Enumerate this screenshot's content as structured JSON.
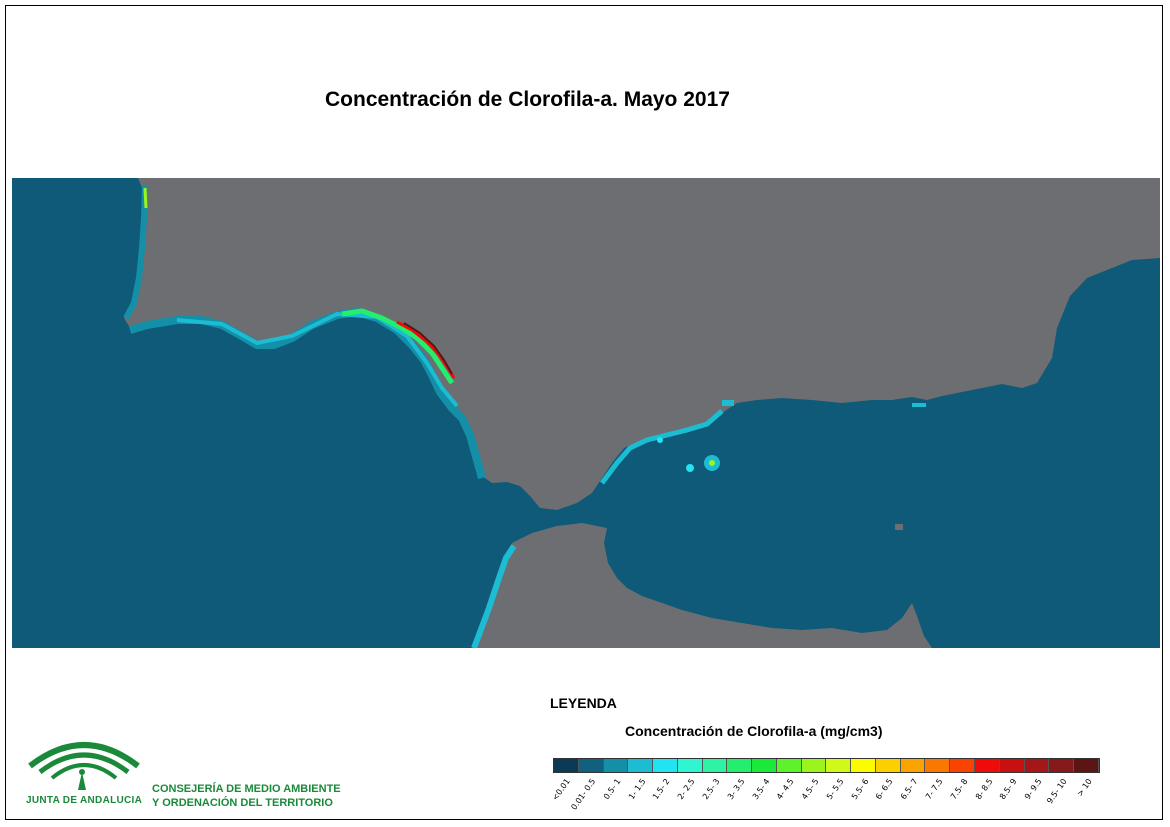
{
  "title": "Concentración de Clorofila-a. Mayo 2017",
  "legend": {
    "heading": "LEYENDA",
    "subtitle": "Concentración de Clorofila-a (mg/cm3)",
    "classes": [
      {
        "label": "<0.01",
        "color": "#0b3a56"
      },
      {
        "label": "0.01- 0.5",
        "color": "#10617e"
      },
      {
        "label": "0.5- 1",
        "color": "#1390a8"
      },
      {
        "label": "1- 1.5",
        "color": "#1cbdd2"
      },
      {
        "label": "1.5- 2",
        "color": "#22e3f2"
      },
      {
        "label": "2- 2.5",
        "color": "#2ff5d0"
      },
      {
        "label": "2.5- 3",
        "color": "#2ef3a5"
      },
      {
        "label": "3- 3.5",
        "color": "#23ee6e"
      },
      {
        "label": "3.5- 4",
        "color": "#1be93a"
      },
      {
        "label": "4- 4.5",
        "color": "#5ef22a"
      },
      {
        "label": "4.5- 5",
        "color": "#9bf51d"
      },
      {
        "label": "5- 5.5",
        "color": "#d0f818"
      },
      {
        "label": "5.5- 6",
        "color": "#fcfb00"
      },
      {
        "label": "6- 6.5",
        "color": "#fcd000"
      },
      {
        "label": "6.5- 7",
        "color": "#fba400"
      },
      {
        "label": "7- 7.5",
        "color": "#fb7800"
      },
      {
        "label": "7.5- 8",
        "color": "#fa4300"
      },
      {
        "label": "8- 8.5",
        "color": "#f00b0b"
      },
      {
        "label": "8.5- 9",
        "color": "#c81010"
      },
      {
        "label": "9- 9.5",
        "color": "#a51616"
      },
      {
        "label": "9.5- 10",
        "color": "#861919"
      },
      {
        "label": "> 10",
        "color": "#5c1515"
      }
    ]
  },
  "logo": {
    "org_name": "JUNTA DE ANDALUCIA",
    "dept_line1": "CONSEJERÍA DE MEDIO AMBIENTE",
    "dept_line2": "Y ORDENACIÓN DEL TERRITORIO"
  },
  "colors": {
    "sea": "#0f5a78",
    "land": "#6d6e71",
    "brand_green": "#1a8a3a"
  }
}
